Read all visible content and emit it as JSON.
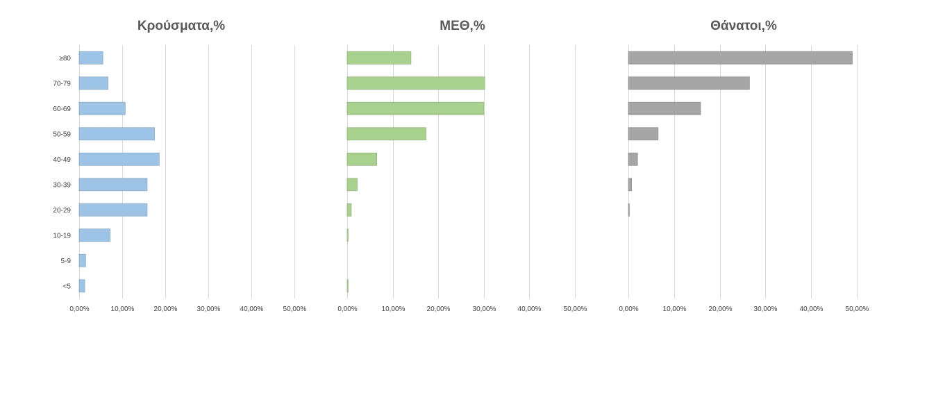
{
  "chart_data": [
    {
      "type": "bar",
      "orientation": "horizontal",
      "title": "Κρούσματα,%",
      "categories": [
        "≥80",
        "70-79",
        "60-69",
        "50-59",
        "40-49",
        "30-39",
        "20-29",
        "10-19",
        "5-9",
        "<5"
      ],
      "values": [
        5.5,
        6.7,
        10.7,
        17.5,
        18.6,
        15.8,
        15.8,
        7.2,
        1.5,
        1.3
      ],
      "xlim": [
        0,
        50
      ],
      "xticks": [
        "0,00%",
        "10,00%",
        "20,00%",
        "30,00%",
        "40,00%",
        "50,00%"
      ],
      "grid": true,
      "color": "#9dc3e6",
      "show_categories": true
    },
    {
      "type": "bar",
      "orientation": "horizontal",
      "title": "ΜΕΘ,%",
      "categories": [
        "≥80",
        "70-79",
        "60-69",
        "50-59",
        "40-49",
        "30-39",
        "20-29",
        "10-19",
        "5-9",
        "<5"
      ],
      "values": [
        14.0,
        30.2,
        30.0,
        17.3,
        6.5,
        2.2,
        0.9,
        0.2,
        0.0,
        0.2
      ],
      "xlim": [
        0,
        50
      ],
      "xticks": [
        "0,00%",
        "10,00%",
        "20,00%",
        "30,00%",
        "40,00%",
        "50,00%"
      ],
      "grid": true,
      "color": "#a9d18e",
      "show_categories": false
    },
    {
      "type": "bar",
      "orientation": "horizontal",
      "title": "Θάνατοι,%",
      "categories": [
        "≥80",
        "70-79",
        "60-69",
        "50-59",
        "40-49",
        "30-39",
        "20-29",
        "10-19",
        "5-9",
        "<5"
      ],
      "values": [
        49.0,
        26.5,
        15.8,
        6.5,
        2.0,
        0.7,
        0.2,
        0.0,
        0.0,
        0.0
      ],
      "xlim": [
        0,
        50
      ],
      "xticks": [
        "0,00%",
        "10,00%",
        "20,00%",
        "30,00%",
        "40,00%",
        "50,00%"
      ],
      "grid": true,
      "color": "#a6a6a6",
      "show_categories": false
    }
  ]
}
